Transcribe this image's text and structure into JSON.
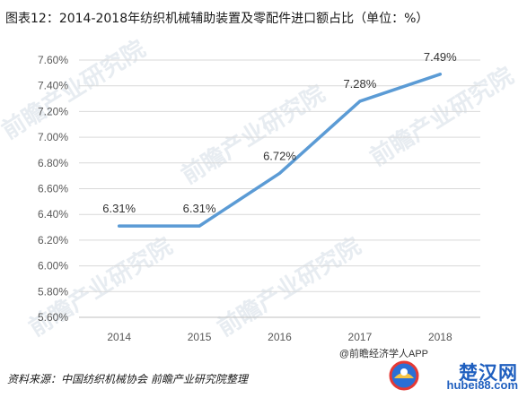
{
  "title": "图表12：2014-2018年纺织机械辅助装置及零配件进口额占比（单位：%）",
  "source": "资料来源：中国纺织机械协会 前瞻产业研究院整理",
  "watermarks": {
    "brand_cn": "前瞻产业研究院",
    "site_cn": "楚汉网",
    "site_domain": "hubei88.com",
    "app_mark": "@前瞻经济学人APP"
  },
  "colors": {
    "line": "#5b9bd5",
    "grid": "#d9d9d9",
    "axis": "#bfbfbf"
  },
  "chart_data": {
    "type": "line",
    "categories": [
      "2014",
      "2015",
      "2016",
      "2017",
      "2018"
    ],
    "series": [
      {
        "values": [
          6.31,
          6.31,
          6.72,
          7.28,
          7.49
        ]
      }
    ],
    "data_labels": [
      "6.31%",
      "6.31%",
      "6.72%",
      "7.28%",
      "7.49%"
    ],
    "ylim": [
      5.6,
      7.6
    ],
    "yticks": [
      7.6,
      7.4,
      7.2,
      7.0,
      6.8,
      6.6,
      6.4,
      6.2,
      6.0,
      5.8,
      5.6
    ],
    "ytick_labels": [
      "7.60%",
      "7.40%",
      "7.20%",
      "7.00%",
      "6.80%",
      "6.60%",
      "6.40%",
      "6.20%",
      "6.00%",
      "5.80%",
      "5.60%"
    ],
    "grid": true,
    "xlabel": "",
    "ylabel": "",
    "legend": "none"
  }
}
